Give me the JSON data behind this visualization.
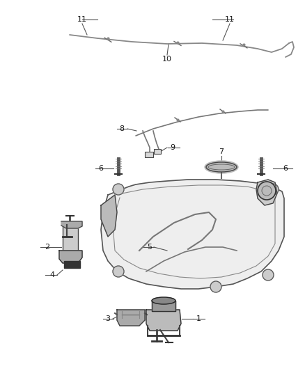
{
  "bg_color": "#ffffff",
  "fig_width": 4.38,
  "fig_height": 5.33,
  "dpi": 100,
  "label_color": "#1a1a1a",
  "line_color": "#555555",
  "part_outline": "#444444",
  "leader_color": "#555555",
  "part_fill": "#d8d8d8",
  "part_fill_dark": "#999999",
  "part_fill_light": "#eeeeee"
}
